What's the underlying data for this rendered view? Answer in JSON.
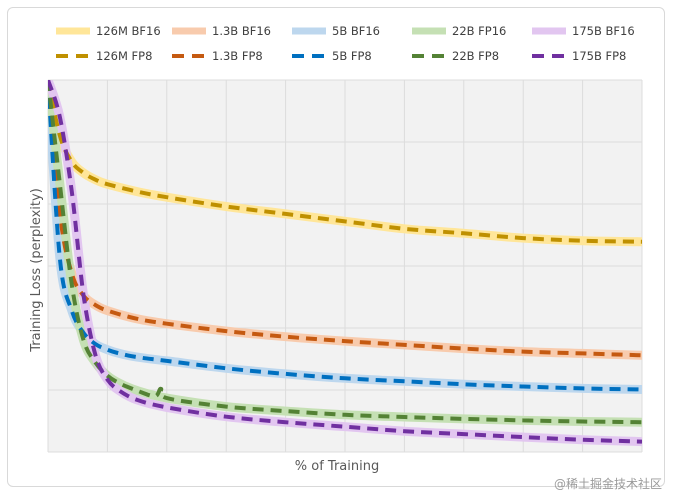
{
  "chart_data": {
    "type": "line",
    "title": "",
    "xlabel": "% of Training",
    "ylabel": "Training Loss (perplexity)",
    "xlim": [
      0,
      100
    ],
    "ylim": [
      0,
      100
    ],
    "x_gridlines": 10,
    "y_gridlines": 6,
    "legend_position": "top",
    "series": [
      {
        "name": "126M BF16",
        "color": "#ffe699",
        "style": "solid",
        "x": [
          0,
          2,
          4,
          6,
          8,
          10,
          15,
          20,
          30,
          40,
          50,
          60,
          70,
          80,
          90,
          100
        ],
        "y": [
          100,
          85,
          78,
          75,
          73.2,
          72,
          70,
          68.5,
          66,
          64,
          62,
          60,
          58.8,
          57.5,
          56.8,
          56.5
        ]
      },
      {
        "name": "1.3B BF16",
        "color": "#f8cbad",
        "style": "solid",
        "x": [
          0,
          2,
          4,
          6,
          8,
          10,
          15,
          20,
          30,
          40,
          50,
          60,
          70,
          80,
          90,
          100
        ],
        "y": [
          100,
          64,
          48,
          42,
          39.5,
          38,
          35.8,
          34.5,
          32.5,
          31,
          29.8,
          28.8,
          27.8,
          27,
          26.5,
          26
        ]
      },
      {
        "name": "5B BF16",
        "color": "#bdd7ee",
        "style": "solid",
        "x": [
          0,
          2,
          4,
          6,
          8,
          10,
          12,
          15,
          20,
          30,
          40,
          50,
          60,
          70,
          80,
          90,
          100
        ],
        "y": [
          100,
          52,
          38,
          32,
          29,
          27.5,
          26.5,
          25.5,
          24.5,
          22.5,
          21,
          19.8,
          19,
          18.2,
          17.6,
          17.1,
          16.8
        ]
      },
      {
        "name": "22B FP16",
        "color": "#c5e0b4",
        "style": "solid",
        "x": [
          0,
          2,
          4,
          6,
          8,
          10,
          12,
          15,
          20,
          30,
          40,
          50,
          60,
          70,
          80,
          90,
          100
        ],
        "y": [
          100,
          72,
          45,
          30,
          24,
          20.5,
          18.5,
          16.5,
          14.5,
          12.2,
          11,
          10,
          9.4,
          8.9,
          8.5,
          8.2,
          8
        ]
      },
      {
        "name": "175B BF16",
        "color": "#e2c6f0",
        "style": "solid",
        "x": [
          0,
          2,
          4,
          6,
          8,
          10,
          12,
          15,
          20,
          30,
          40,
          50,
          60,
          70,
          80,
          90,
          100
        ],
        "y": [
          100,
          90,
          70,
          42,
          26,
          19.5,
          16.5,
          14,
          12,
          9.5,
          8,
          6.8,
          5.6,
          4.8,
          4,
          3.3,
          2.8
        ]
      },
      {
        "name": "126M FP8",
        "color": "#bf9000",
        "style": "dashed",
        "x": [
          0,
          2,
          4,
          6,
          8,
          10,
          15,
          20,
          30,
          40,
          50,
          60,
          70,
          80,
          90,
          100
        ],
        "y": [
          100,
          85,
          78,
          75,
          73.2,
          72,
          70,
          68.5,
          66,
          64,
          62,
          60,
          58.8,
          57.5,
          56.8,
          56.5
        ]
      },
      {
        "name": "1.3B FP8",
        "color": "#c55a11",
        "style": "dashed",
        "x": [
          0,
          2,
          4,
          6,
          8,
          10,
          15,
          20,
          30,
          40,
          50,
          60,
          70,
          80,
          90,
          100
        ],
        "y": [
          100,
          64,
          48,
          42,
          39.5,
          38,
          35.8,
          34.5,
          32.5,
          31,
          29.8,
          28.8,
          27.8,
          27,
          26.5,
          26
        ]
      },
      {
        "name": "5B FP8",
        "color": "#0070c0",
        "style": "dashed",
        "x": [
          0,
          2,
          4,
          6,
          8,
          10,
          12,
          15,
          20,
          30,
          40,
          50,
          60,
          70,
          80,
          90,
          100
        ],
        "y": [
          100,
          52,
          38,
          32,
          29,
          27.5,
          26.5,
          25.5,
          24.5,
          22.5,
          21,
          19.8,
          19,
          18.2,
          17.6,
          17.1,
          16.8
        ]
      },
      {
        "name": "22B FP8",
        "color": "#548235",
        "style": "dashed",
        "x": [
          0,
          2,
          4,
          6,
          8,
          10,
          12,
          15,
          18,
          19,
          20,
          30,
          40,
          50,
          60,
          70,
          80,
          90,
          100
        ],
        "y": [
          100,
          72,
          45,
          30,
          24,
          20.5,
          18.5,
          16.5,
          15,
          17,
          14.5,
          12.2,
          11,
          10,
          9.4,
          8.9,
          8.5,
          8.2,
          8
        ]
      },
      {
        "name": "175B FP8",
        "color": "#7030a0",
        "style": "dashed",
        "x": [
          0,
          2,
          4,
          6,
          8,
          10,
          12,
          15,
          20,
          30,
          40,
          50,
          60,
          70,
          80,
          90,
          100
        ],
        "y": [
          100,
          90,
          70,
          42,
          26,
          19.5,
          16.5,
          14,
          12,
          9.5,
          8,
          6.8,
          5.6,
          4.8,
          4,
          3.3,
          2.8
        ]
      }
    ]
  },
  "watermark": "@稀土掘金技术社区"
}
